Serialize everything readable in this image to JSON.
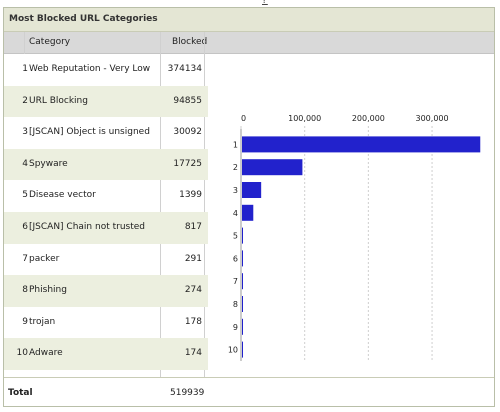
{
  "top_clip_text": "?",
  "panel": {
    "title": "Most Blocked URL Categories",
    "headers": {
      "category": "Category",
      "blocked": "Blocked"
    },
    "rows": [
      {
        "rank": "1",
        "category": "Web Reputation - Very Low",
        "blocked": "374134"
      },
      {
        "rank": "2",
        "category": "URL Blocking",
        "blocked": "94855"
      },
      {
        "rank": "3",
        "category": "[JSCAN] Object is unsigned",
        "blocked": "30092"
      },
      {
        "rank": "4",
        "category": "Spyware",
        "blocked": "17725"
      },
      {
        "rank": "5",
        "category": "Disease vector",
        "blocked": "1399"
      },
      {
        "rank": "6",
        "category": "[JSCAN] Chain not trusted",
        "blocked": "817"
      },
      {
        "rank": "7",
        "category": "packer",
        "blocked": "291"
      },
      {
        "rank": "8",
        "category": "Phishing",
        "blocked": "274"
      },
      {
        "rank": "9",
        "category": "trojan",
        "blocked": "178"
      },
      {
        "rank": "10",
        "category": "Adware",
        "blocked": "174"
      }
    ],
    "total": {
      "label": "Total",
      "value": "519939"
    }
  },
  "chart_data": {
    "type": "bar",
    "orientation": "horizontal",
    "categories": [
      "1",
      "2",
      "3",
      "4",
      "5",
      "6",
      "7",
      "8",
      "9",
      "10"
    ],
    "values": [
      374134,
      94855,
      30092,
      17725,
      1399,
      817,
      291,
      274,
      178,
      174
    ],
    "xticks": [
      "0",
      "100,000",
      "200,000",
      "300,000"
    ],
    "xlim": [
      0,
      380000
    ],
    "grid": true,
    "bar_color": "#2222cc"
  }
}
